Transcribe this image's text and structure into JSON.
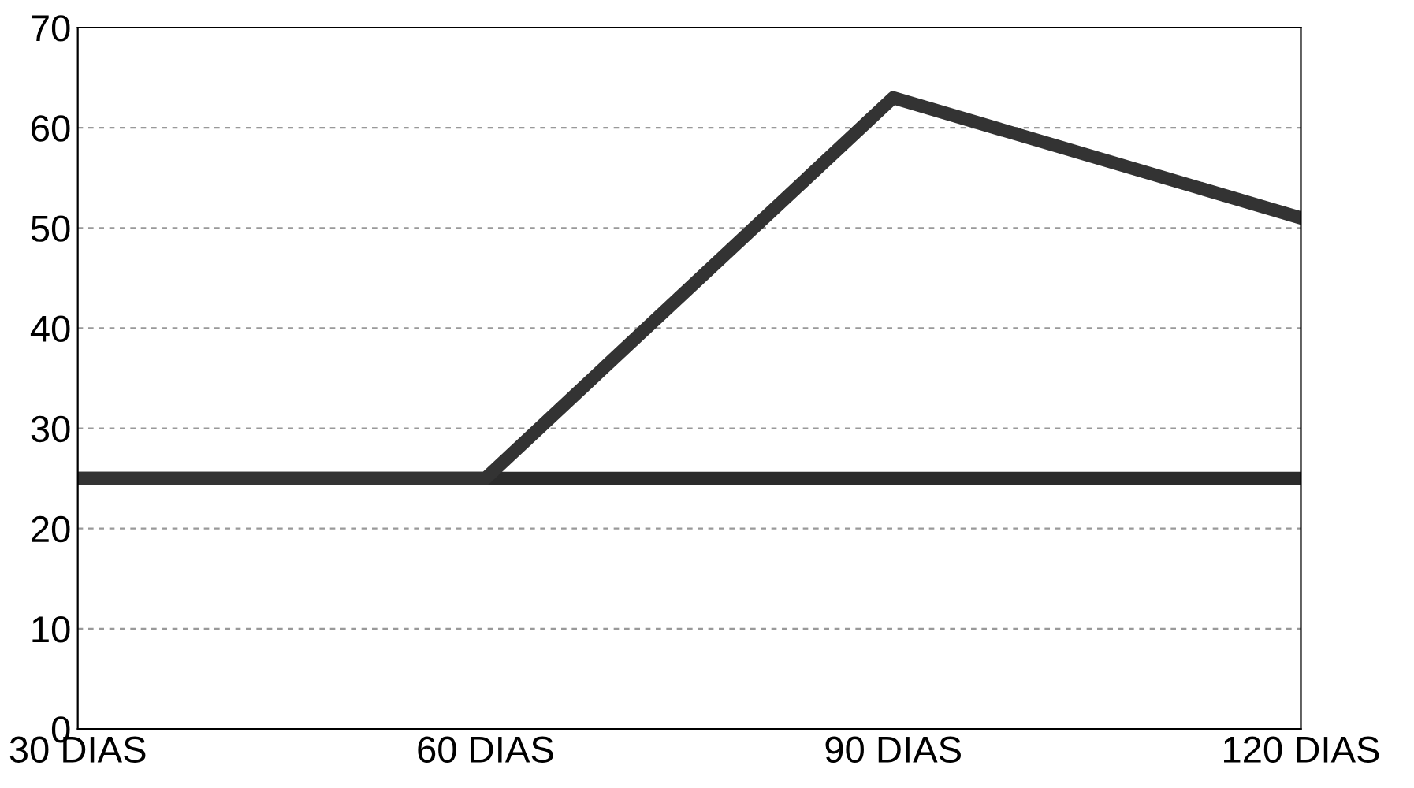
{
  "chart_data": {
    "type": "line",
    "categories": [
      "30 DIAS",
      "60 DIAS",
      "90 DIAS",
      "120 DIAS"
    ],
    "series": [
      {
        "color": "#2b2b2b",
        "values": [
          25,
          25,
          25,
          25
        ]
      },
      {
        "color": "#333333",
        "values": [
          25,
          25,
          63,
          51
        ]
      }
    ],
    "ylim": [
      0,
      70
    ],
    "yticks": [
      0,
      10,
      20,
      30,
      40,
      50,
      60,
      70
    ],
    "grid": "y",
    "legend": false,
    "marker": "none",
    "line_style": "solid"
  }
}
